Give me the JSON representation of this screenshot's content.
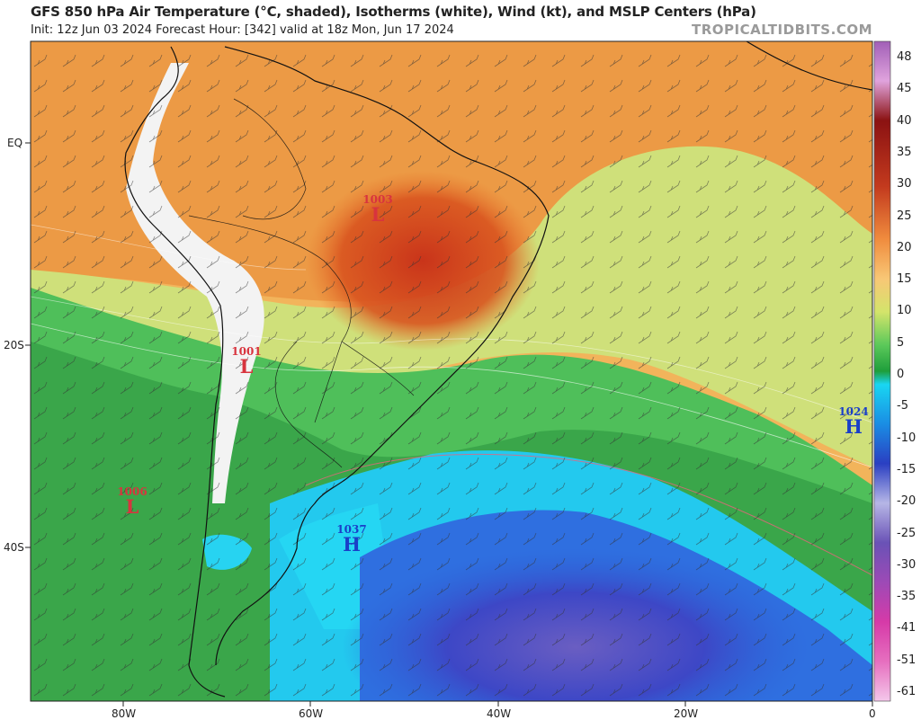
{
  "header": {
    "title": "GFS 850 hPa Air Temperature (°C, shaded), Isotherms (white), Wind (kt), and MSLP Centers (hPa)",
    "subtitle": "Init: 12z Jun 03 2024   Forecast Hour: [342]   valid at 18z Mon, Jun 17 2024",
    "brand": "TROPICALTIDBITS.COM"
  },
  "axes": {
    "lat_labels": [
      "EQ",
      "20S",
      "40S"
    ],
    "lon_labels": [
      "80W",
      "60W",
      "40W",
      "20W",
      "0"
    ]
  },
  "colorbar": {
    "ticks": [
      "48",
      "45",
      "40",
      "35",
      "30",
      "25",
      "20",
      "15",
      "10",
      "5",
      "0",
      "-5",
      "-10",
      "-15",
      "-20",
      "-25",
      "-30",
      "-35",
      "-41",
      "-51",
      "-61"
    ],
    "unit": "°C"
  },
  "pressure_centers": [
    {
      "type": "L",
      "value": "1003",
      "color": "#d8343e"
    },
    {
      "type": "L",
      "value": "1001",
      "color": "#d8343e"
    },
    {
      "type": "L",
      "value": "1006",
      "color": "#d8343e"
    },
    {
      "type": "H",
      "value": "1037",
      "color": "#1a3fc8"
    },
    {
      "type": "H",
      "value": "1024",
      "color": "#1a3fc8"
    }
  ]
}
